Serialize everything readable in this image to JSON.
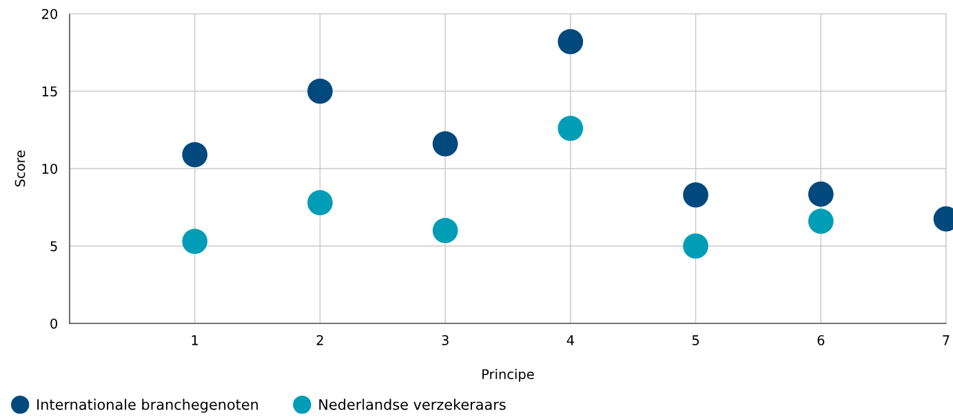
{
  "chart_data": {
    "type": "scatter",
    "xlabel": "Principe",
    "ylabel": "Score",
    "x": [
      1,
      2,
      3,
      4,
      5,
      6,
      7
    ],
    "series": [
      {
        "name": "Internationale branchegenoten",
        "color": "#00497c",
        "values": [
          10.9,
          15.0,
          11.6,
          18.2,
          8.3,
          8.35,
          6.75
        ]
      },
      {
        "name": "Nederlandse verzekeraars",
        "color": "#009db6",
        "values": [
          5.3,
          7.8,
          6.0,
          12.6,
          5.0,
          6.6,
          null
        ]
      }
    ],
    "xlim": [
      0,
      7
    ],
    "xticks": [
      1,
      2,
      3,
      4,
      5,
      6,
      7
    ],
    "ylim": [
      0,
      20
    ],
    "yticks": [
      0,
      5,
      10,
      15,
      20
    ],
    "grid": true,
    "legend": "bottom left",
    "marker": "circle"
  }
}
